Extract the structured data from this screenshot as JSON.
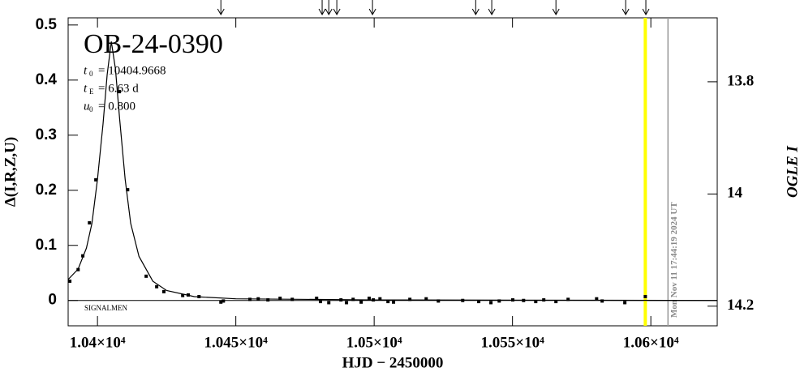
{
  "chart_data": {
    "type": "scatter",
    "title": "OB-24-0390",
    "params": [
      {
        "symbol": "t",
        "sub": "0",
        "text": "= 10404.9668"
      },
      {
        "symbol": "t",
        "sub": "E",
        "text": "= 6.63 d"
      },
      {
        "symbol": "u",
        "sub": "0",
        "text": "= 0.800"
      }
    ],
    "annotation": "SIGNALMEN",
    "date_text": "Mon Nov 11 17:44:19 2024 UT",
    "xlabel": "HJD − 2450000",
    "ylabel": "Δ(I,R,Z,U)",
    "y2label": "OGLE I",
    "xlim": [
      10389.4,
      10624.0
    ],
    "ylim": [
      -0.046,
      0.513
    ],
    "y2lim": [
      14.235,
      13.686
    ],
    "xticks": [
      {
        "value": 10400,
        "label": "1.04×10⁴"
      },
      {
        "value": 10450,
        "label": "1.045×10⁴"
      },
      {
        "value": 10500,
        "label": "1.05×10⁴"
      },
      {
        "value": 10550,
        "label": "1.055×10⁴"
      },
      {
        "value": 10600,
        "label": "1.06×10⁴"
      }
    ],
    "yticks": [
      0,
      0.1,
      0.2,
      0.3,
      0.4,
      0.5
    ],
    "y2ticks": [
      13.8,
      14,
      14.2
    ],
    "series": [
      {
        "name": "data",
        "color": "#000000",
        "x": [
          10390.0,
          10393.0,
          10394.7,
          10397.1,
          10399.4,
          10407.9,
          10410.9,
          10417.6,
          10421.4,
          10424.0,
          10430.8,
          10432.8,
          10436.7,
          10444.6,
          10445.5,
          10455.1,
          10458.1,
          10461.6,
          10466.0,
          10470.4,
          10479.2,
          10480.6,
          10483.6,
          10488.0,
          10490.0,
          10492.4,
          10495.3,
          10498.2,
          10499.7,
          10502.1,
          10505.0,
          10507.0,
          10512.9,
          10518.8,
          10523.2,
          10532.0,
          10537.8,
          10542.2,
          10545.2,
          10550.1,
          10554.0,
          10558.4,
          10561.3,
          10565.7,
          10570.1,
          10580.4,
          10582.4,
          10590.6,
          10598.0
        ],
        "values": [
          0.035,
          0.056,
          0.081,
          0.141,
          0.219,
          0.379,
          0.201,
          0.044,
          0.025,
          0.016,
          0.009,
          0.01,
          0.007,
          -0.003,
          -0.001,
          0.002,
          0.003,
          0.001,
          0.004,
          0.002,
          0.004,
          -0.002,
          -0.004,
          0.001,
          -0.004,
          0.002,
          -0.003,
          0.004,
          0.001,
          0.003,
          -0.002,
          -0.003,
          0.002,
          0.003,
          -0.001,
          0.0,
          -0.002,
          -0.004,
          -0.001,
          0.001,
          0.0,
          -0.002,
          0.001,
          -0.002,
          0.002,
          0.003,
          -0.001,
          -0.004,
          0.007
        ]
      },
      {
        "name": "model",
        "color": "#000000",
        "x": [
          10389.4,
          10393,
          10396,
          10398,
          10400,
          10402,
          10403.5,
          10405,
          10406.5,
          10408,
          10410,
          10412,
          10415,
          10420,
          10425,
          10435,
          10450,
          10500,
          10624
        ],
        "values": [
          0.038,
          0.057,
          0.095,
          0.14,
          0.22,
          0.32,
          0.41,
          0.47,
          0.42,
          0.33,
          0.22,
          0.14,
          0.08,
          0.035,
          0.018,
          0.007,
          0.003,
          0.001,
          0.0
        ]
      }
    ],
    "arrows_x": [
      10444.6,
      10481.2,
      10483.6,
      10486.5,
      10499.4,
      10536.7,
      10542.5,
      10565.7,
      10590.9,
      10598.2
    ],
    "now_line": {
      "x": 10598.0,
      "color": "#ffff00"
    },
    "date_line": {
      "x": 10606.2,
      "color": "#999999"
    }
  }
}
